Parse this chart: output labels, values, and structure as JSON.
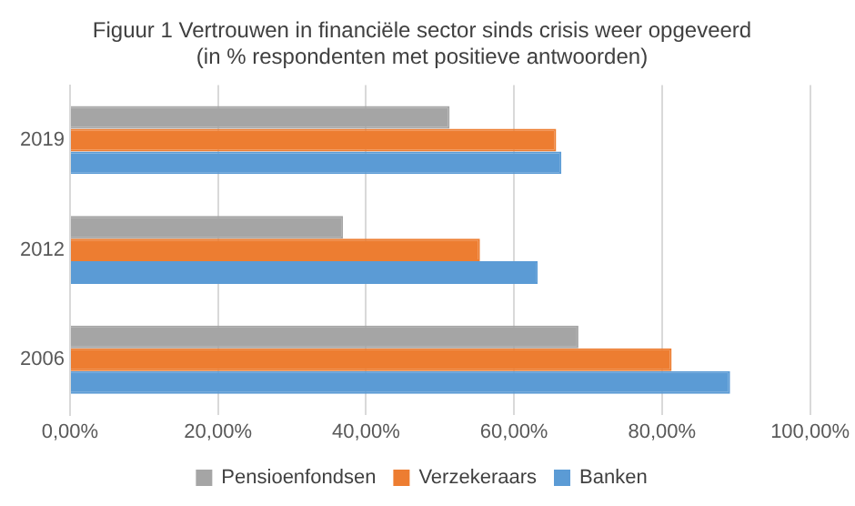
{
  "chart_data": {
    "type": "bar",
    "orientation": "horizontal",
    "title": "Figuur 1 Vertrouwen in financiële sector sinds crisis weer opgeveerd\n(in % respondenten met positieve antwoorden)",
    "categories": [
      "2019",
      "2012",
      "2006"
    ],
    "series": [
      {
        "name": "Pensioenfondsen",
        "color": "#a5a5a5",
        "values": [
          51.3,
          36.9,
          68.7
        ]
      },
      {
        "name": "Verzekeraars",
        "color": "#ed7d31",
        "values": [
          65.7,
          55.4,
          81.3
        ]
      },
      {
        "name": "Banken",
        "color": "#5b9bd5",
        "values": [
          66.4,
          63.2,
          89.2
        ]
      }
    ],
    "xlim": [
      0,
      100
    ],
    "xticks": [
      {
        "value": 0,
        "label": "0,00%"
      },
      {
        "value": 20,
        "label": "20,00%"
      },
      {
        "value": 40,
        "label": "40,00%"
      },
      {
        "value": 60,
        "label": "60,00%"
      },
      {
        "value": 80,
        "label": "80,00%"
      },
      {
        "value": 100,
        "label": "100,00%"
      }
    ],
    "grid": "x",
    "legend": "bottom"
  }
}
